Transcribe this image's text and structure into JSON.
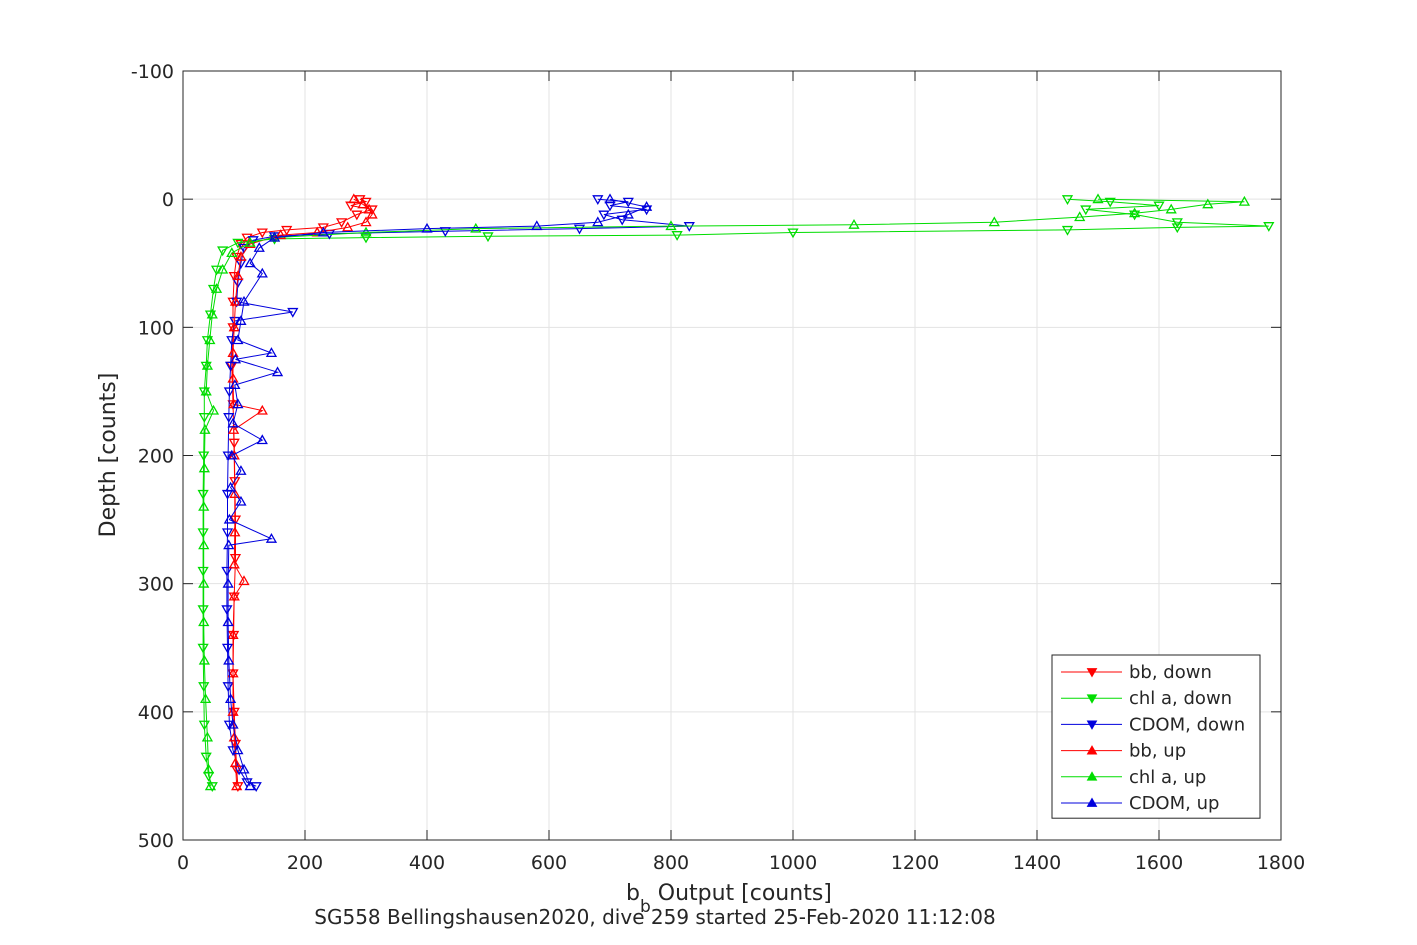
{
  "chart_data": {
    "type": "line",
    "xlabel": "b",
    "xlabel_sub": "b",
    "xlabel_rest": " Output [counts]",
    "ylabel": "Depth [counts]",
    "caption": "SG558 Bellingshausen2020, dive 259 started 25-Feb-2020 11:12:08",
    "xlim": [
      0,
      1800
    ],
    "ylim": [
      -100,
      500
    ],
    "y_reversed": true,
    "grid": true,
    "legend_position": "bottom-right",
    "xticks": [
      "0",
      "200",
      "400",
      "600",
      "800",
      "1000",
      "1200",
      "1400",
      "1600",
      "1800"
    ],
    "yticks": [
      "-100",
      "0",
      "100",
      "200",
      "300",
      "400",
      "500"
    ],
    "series": [
      {
        "name": "bb, down",
        "color": "#ff0000",
        "marker": "triangle-down",
        "points": [
          [
            290,
            0
          ],
          [
            300,
            2
          ],
          [
            275,
            5
          ],
          [
            310,
            8
          ],
          [
            285,
            12
          ],
          [
            260,
            18
          ],
          [
            230,
            22
          ],
          [
            170,
            24
          ],
          [
            130,
            26
          ],
          [
            105,
            30
          ],
          [
            95,
            35
          ],
          [
            88,
            45
          ],
          [
            84,
            60
          ],
          [
            82,
            80
          ],
          [
            82,
            100
          ],
          [
            80,
            130
          ],
          [
            82,
            160
          ],
          [
            84,
            190
          ],
          [
            85,
            220
          ],
          [
            86,
            250
          ],
          [
            86,
            280
          ],
          [
            84,
            310
          ],
          [
            83,
            340
          ],
          [
            82,
            370
          ],
          [
            84,
            400
          ],
          [
            86,
            425
          ],
          [
            88,
            445
          ],
          [
            90,
            458
          ]
        ]
      },
      {
        "name": "chl a, down",
        "color": "#00dd00",
        "marker": "triangle-down",
        "points": [
          [
            1450,
            0
          ],
          [
            1520,
            2
          ],
          [
            1600,
            5
          ],
          [
            1480,
            8
          ],
          [
            1560,
            12
          ],
          [
            1630,
            18
          ],
          [
            1780,
            21
          ],
          [
            1630,
            22
          ],
          [
            1450,
            24
          ],
          [
            1000,
            26
          ],
          [
            810,
            28
          ],
          [
            500,
            29
          ],
          [
            300,
            30
          ],
          [
            150,
            31
          ],
          [
            90,
            34
          ],
          [
            65,
            40
          ],
          [
            55,
            55
          ],
          [
            50,
            70
          ],
          [
            45,
            90
          ],
          [
            40,
            110
          ],
          [
            38,
            130
          ],
          [
            35,
            150
          ],
          [
            35,
            170
          ],
          [
            34,
            200
          ],
          [
            33,
            230
          ],
          [
            33,
            260
          ],
          [
            33,
            290
          ],
          [
            33,
            320
          ],
          [
            33,
            350
          ],
          [
            34,
            380
          ],
          [
            35,
            410
          ],
          [
            38,
            435
          ],
          [
            42,
            450
          ],
          [
            48,
            458
          ]
        ]
      },
      {
        "name": "CDOM, down",
        "color": "#0000dd",
        "marker": "triangle-down",
        "points": [
          [
            680,
            0
          ],
          [
            730,
            2
          ],
          [
            700,
            5
          ],
          [
            760,
            8
          ],
          [
            690,
            12
          ],
          [
            720,
            16
          ],
          [
            830,
            21
          ],
          [
            650,
            23
          ],
          [
            430,
            25
          ],
          [
            240,
            27
          ],
          [
            150,
            29
          ],
          [
            115,
            32
          ],
          [
            100,
            38
          ],
          [
            95,
            50
          ],
          [
            90,
            65
          ],
          [
            88,
            80
          ],
          [
            180,
            88
          ],
          [
            85,
            95
          ],
          [
            80,
            110
          ],
          [
            78,
            130
          ],
          [
            76,
            150
          ],
          [
            75,
            170
          ],
          [
            74,
            200
          ],
          [
            73,
            230
          ],
          [
            73,
            260
          ],
          [
            72,
            290
          ],
          [
            72,
            320
          ],
          [
            73,
            350
          ],
          [
            74,
            380
          ],
          [
            76,
            410
          ],
          [
            82,
            430
          ],
          [
            92,
            445
          ],
          [
            105,
            455
          ],
          [
            120,
            458
          ]
        ]
      },
      {
        "name": "bb, up",
        "color": "#ff0000",
        "marker": "triangle-up",
        "points": [
          [
            88,
            458
          ],
          [
            86,
            440
          ],
          [
            84,
            420
          ],
          [
            82,
            400
          ],
          [
            82,
            370
          ],
          [
            82,
            340
          ],
          [
            84,
            310
          ],
          [
            100,
            298
          ],
          [
            84,
            285
          ],
          [
            85,
            260
          ],
          [
            85,
            230
          ],
          [
            84,
            200
          ],
          [
            83,
            180
          ],
          [
            130,
            165
          ],
          [
            83,
            160
          ],
          [
            82,
            140
          ],
          [
            82,
            120
          ],
          [
            84,
            100
          ],
          [
            86,
            80
          ],
          [
            90,
            60
          ],
          [
            95,
            45
          ],
          [
            110,
            35
          ],
          [
            160,
            28
          ],
          [
            220,
            26
          ],
          [
            270,
            22
          ],
          [
            300,
            18
          ],
          [
            310,
            12
          ],
          [
            305,
            8
          ],
          [
            295,
            4
          ],
          [
            280,
            0
          ]
        ]
      },
      {
        "name": "chl a, up",
        "color": "#00dd00",
        "marker": "triangle-up",
        "points": [
          [
            45,
            458
          ],
          [
            42,
            445
          ],
          [
            40,
            420
          ],
          [
            37,
            390
          ],
          [
            35,
            360
          ],
          [
            34,
            330
          ],
          [
            34,
            300
          ],
          [
            34,
            270
          ],
          [
            34,
            240
          ],
          [
            35,
            210
          ],
          [
            36,
            180
          ],
          [
            50,
            165
          ],
          [
            38,
            150
          ],
          [
            40,
            130
          ],
          [
            44,
            110
          ],
          [
            48,
            90
          ],
          [
            55,
            70
          ],
          [
            65,
            55
          ],
          [
            80,
            42
          ],
          [
            110,
            34
          ],
          [
            150,
            30
          ],
          [
            300,
            26
          ],
          [
            480,
            23
          ],
          [
            800,
            21
          ],
          [
            1100,
            20
          ],
          [
            1330,
            18
          ],
          [
            1470,
            14
          ],
          [
            1560,
            11
          ],
          [
            1620,
            8
          ],
          [
            1680,
            4
          ],
          [
            1740,
            2
          ],
          [
            1500,
            0
          ]
        ]
      },
      {
        "name": "CDOM, up",
        "color": "#0000dd",
        "marker": "triangle-up",
        "points": [
          [
            110,
            458
          ],
          [
            100,
            445
          ],
          [
            90,
            430
          ],
          [
            82,
            410
          ],
          [
            78,
            390
          ],
          [
            75,
            360
          ],
          [
            74,
            330
          ],
          [
            74,
            300
          ],
          [
            75,
            270
          ],
          [
            145,
            265
          ],
          [
            76,
            250
          ],
          [
            95,
            236
          ],
          [
            78,
            225
          ],
          [
            95,
            212
          ],
          [
            80,
            200
          ],
          [
            130,
            188
          ],
          [
            82,
            175
          ],
          [
            90,
            160
          ],
          [
            85,
            145
          ],
          [
            155,
            135
          ],
          [
            86,
            125
          ],
          [
            145,
            120
          ],
          [
            90,
            110
          ],
          [
            95,
            95
          ],
          [
            100,
            80
          ],
          [
            130,
            58
          ],
          [
            110,
            50
          ],
          [
            125,
            38
          ],
          [
            150,
            30
          ],
          [
            230,
            26
          ],
          [
            400,
            23
          ],
          [
            580,
            21
          ],
          [
            680,
            18
          ],
          [
            730,
            12
          ],
          [
            760,
            6
          ],
          [
            700,
            0
          ]
        ]
      }
    ]
  }
}
